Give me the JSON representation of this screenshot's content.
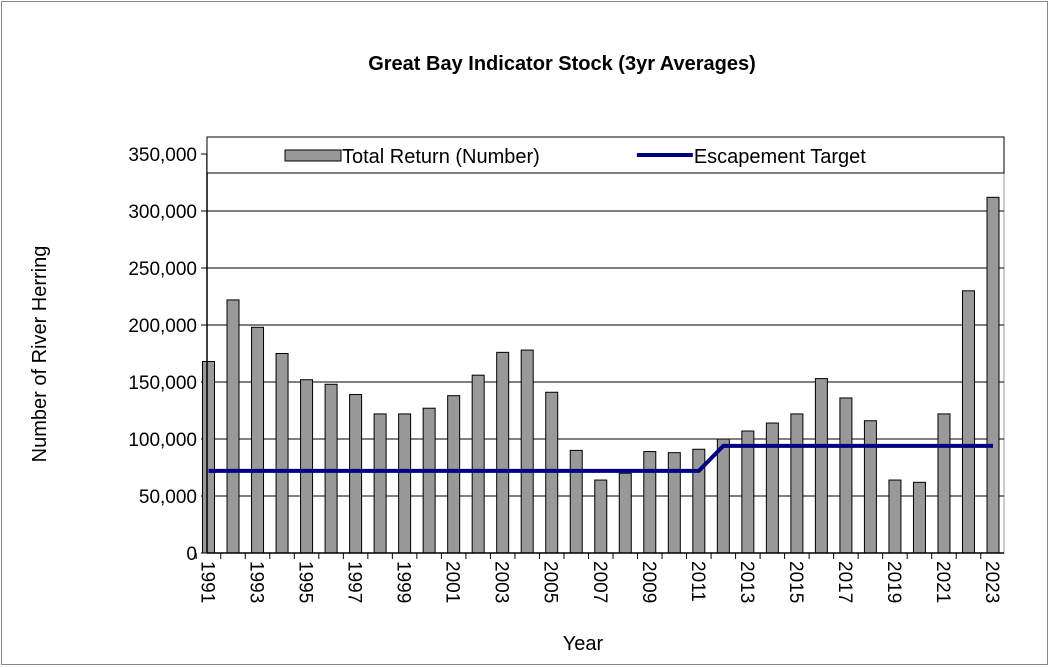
{
  "chart_data": {
    "type": "bar",
    "title": "Great Bay Indicator Stock (3yr Averages)",
    "x_label": "Year",
    "y_label": "Number of River Herring",
    "categories": [
      "1991",
      null,
      "1993",
      null,
      "1995",
      null,
      "1997",
      null,
      "1999",
      null,
      "2001",
      null,
      "2003",
      null,
      "2005",
      null,
      "2007",
      null,
      "2009",
      null,
      "2011",
      null,
      "2013",
      null,
      "2015",
      null,
      "2017",
      null,
      "2019",
      null,
      "2021",
      null,
      "2023"
    ],
    "series": [
      {
        "name": "Total Return (Number)",
        "type": "bar",
        "color": "#999999",
        "values": [
          168000,
          222000,
          198000,
          175000,
          152000,
          148000,
          139000,
          122000,
          122000,
          127000,
          138000,
          156000,
          176000,
          178000,
          141000,
          90000,
          64000,
          70000,
          89000,
          88000,
          91000,
          100000,
          107000,
          114000,
          122000,
          153000,
          136000,
          116000,
          64000,
          62000,
          122000,
          230000,
          312000
        ]
      },
      {
        "name": "Escapement Target",
        "type": "line",
        "color": "#000080",
        "values": [
          72000,
          72000,
          72000,
          72000,
          72000,
          72000,
          72000,
          72000,
          72000,
          72000,
          72000,
          72000,
          72000,
          72000,
          72000,
          72000,
          72000,
          72000,
          72000,
          72000,
          72000,
          94000,
          94000,
          94000,
          94000,
          94000,
          94000,
          94000,
          94000,
          94000,
          94000,
          94000,
          94000
        ]
      }
    ],
    "ylim": [
      0,
      350000
    ],
    "yticks": [
      0,
      {
        "value": 50000,
        "label": "50,000"
      },
      {
        "value": 100000,
        "label": "100,000"
      },
      {
        "value": 150000,
        "label": "150,000"
      },
      {
        "value": 200000,
        "label": "200,000"
      },
      {
        "value": 250000,
        "label": "250,000"
      },
      {
        "value": 300000,
        "label": "300,000"
      },
      {
        "value": 350000,
        "label": "350,000"
      }
    ],
    "grid": true,
    "legend": "top"
  }
}
